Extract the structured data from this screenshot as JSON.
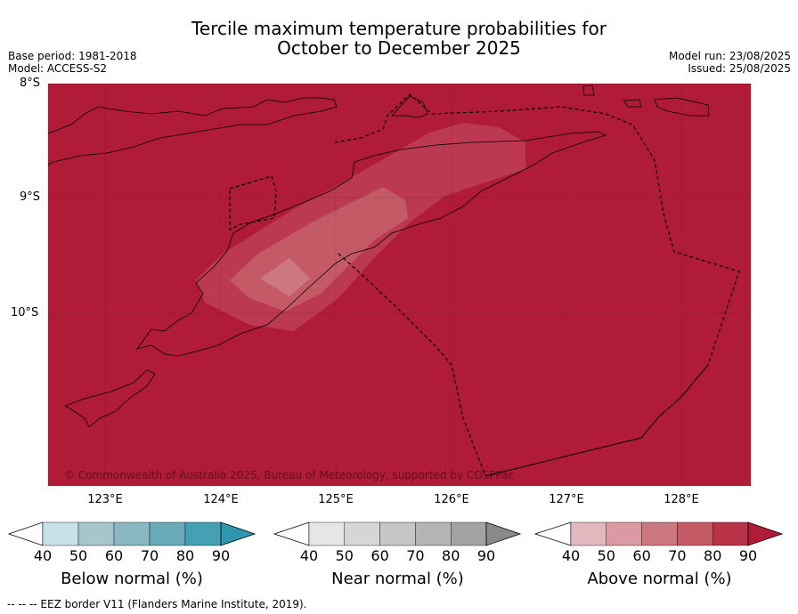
{
  "title_line1": "Tercile maximum temperature probabilities for",
  "title_line2": "October to December 2025",
  "meta_left": [
    "Base period: 1981-2018",
    "Model: ACCESS-S2"
  ],
  "meta_right": [
    "Model run: 23/08/2025",
    "Issued: 25/08/2025"
  ],
  "lat_ticks": [
    "8°S",
    "9°S",
    "10°S"
  ],
  "lon_ticks": [
    "123°E",
    "124°E",
    "125°E",
    "126°E",
    "127°E",
    "128°E"
  ],
  "copyright": "© Commonwealth of Australia 2025, Bureau of Meteorology, supported by COSPPac",
  "colorbars": [
    {
      "label": "Below normal (%)",
      "ticks": [
        "40",
        "50",
        "60",
        "70",
        "80",
        "90"
      ],
      "colors": [
        "#ffffff",
        "#c6e0e7",
        "#a6c6cd",
        "#89b7c2",
        "#6aa9b7",
        "#45a0b4",
        "#2e96ad"
      ]
    },
    {
      "label": "Near normal (%)",
      "ticks": [
        "40",
        "50",
        "60",
        "70",
        "80",
        "90"
      ],
      "colors": [
        "#ffffff",
        "#e6e6e6",
        "#d6d6d6",
        "#c6c6c6",
        "#b4b4b4",
        "#a2a2a2",
        "#8a8a8a"
      ]
    },
    {
      "label": "Above normal (%)",
      "ticks": [
        "40",
        "50",
        "60",
        "70",
        "80",
        "90"
      ],
      "colors": [
        "#ffffff",
        "#e2b8be",
        "#d99aa3",
        "#cd7880",
        "#c55a67",
        "#b93348",
        "#b01c38"
      ]
    }
  ],
  "footer": "--  --  -- EEZ border V11 (Flanders Marine Institute, 2019).",
  "colors": {
    "above_90": "#b01c38",
    "above_80": "#bb3a52",
    "above_70": "#c55a67",
    "above_60": "#cd7880"
  }
}
